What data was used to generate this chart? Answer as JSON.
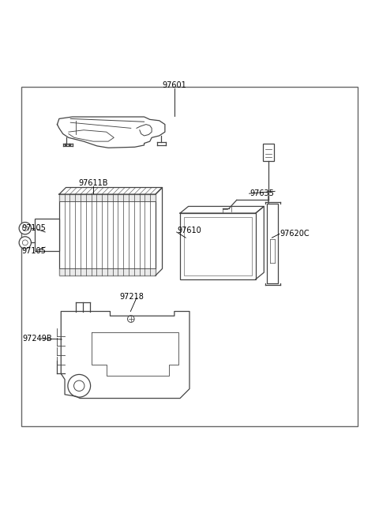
{
  "bg_color": "#ffffff",
  "border_color": "#888888",
  "line_color": "#444444",
  "label_color": "#000000",
  "fig_w": 4.8,
  "fig_h": 6.55,
  "dpi": 100,
  "font_size": 7.0,
  "border": [
    0.055,
    0.055,
    0.89,
    0.9
  ]
}
